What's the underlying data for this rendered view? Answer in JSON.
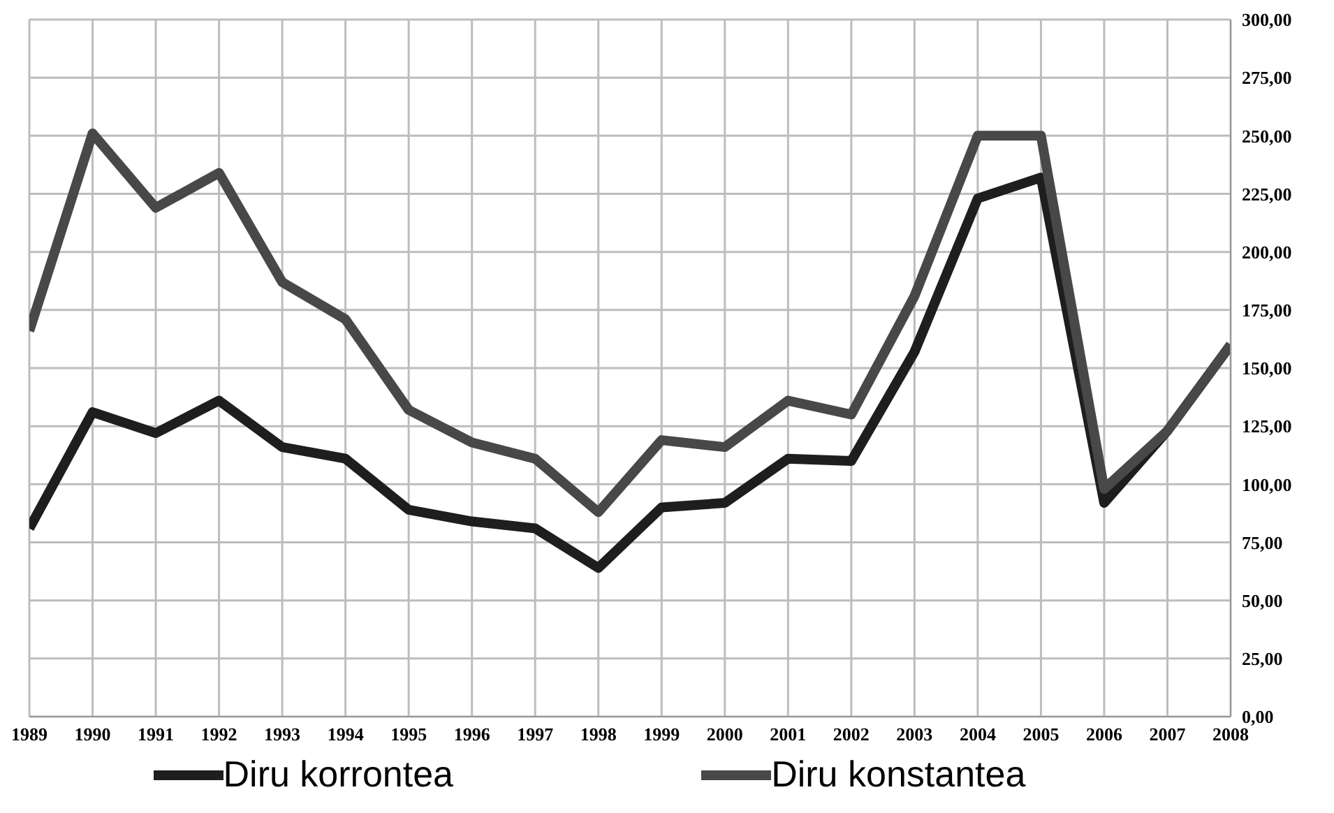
{
  "chart_data": {
    "type": "line",
    "categories": [
      "1989",
      "1990",
      "1991",
      "1992",
      "1993",
      "1994",
      "1995",
      "1996",
      "1997",
      "1998",
      "1999",
      "2000",
      "2001",
      "2002",
      "2003",
      "2004",
      "2005",
      "2006",
      "2007",
      "2008"
    ],
    "series": [
      {
        "name": "Diru korrontea",
        "color": "#1e1e1e",
        "values": [
          81,
          131,
          122,
          136,
          116,
          111,
          89,
          84,
          81,
          64,
          90,
          92,
          111,
          110,
          157,
          223,
          232,
          92,
          123,
          160
        ]
      },
      {
        "name": "Diru konstantea",
        "color": "#484848",
        "values": [
          166,
          251,
          219,
          234,
          187,
          171,
          132,
          118,
          111,
          88,
          119,
          116,
          136,
          130,
          181,
          250,
          250,
          98,
          123,
          160
        ]
      }
    ],
    "ylim": [
      0,
      300
    ],
    "yticks": [
      {
        "value": 0,
        "label": "0,00"
      },
      {
        "value": 25,
        "label": "25,00"
      },
      {
        "value": 50,
        "label": "50,00"
      },
      {
        "value": 75,
        "label": "75,00"
      },
      {
        "value": 100,
        "label": "100,00"
      },
      {
        "value": 125,
        "label": "125,00"
      },
      {
        "value": 150,
        "label": "150,00"
      },
      {
        "value": 175,
        "label": "175,00"
      },
      {
        "value": 200,
        "label": "200,00"
      },
      {
        "value": 225,
        "label": "225,00"
      },
      {
        "value": 250,
        "label": "250,00"
      },
      {
        "value": 275,
        "label": "275,00"
      },
      {
        "value": 300,
        "label": "300,00"
      }
    ],
    "grid": true,
    "legend": "bottom",
    "marker": "none",
    "line_style": "solid"
  }
}
